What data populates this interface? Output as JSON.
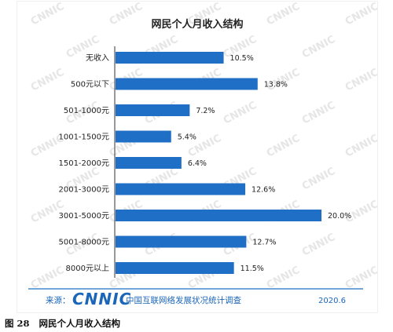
{
  "chart_data": {
    "type": "bar",
    "orientation": "horizontal",
    "title": "网民个人月收入结构",
    "categories": [
      "无收入",
      "500元以下",
      "501-1000元",
      "1001-1500元",
      "1501-2000元",
      "2001-3000元",
      "3001-5000元",
      "5001-8000元",
      "8000元以上"
    ],
    "values": [
      10.5,
      13.8,
      7.2,
      5.4,
      6.4,
      12.6,
      20.0,
      12.7,
      11.5
    ],
    "value_labels": [
      "10.5%",
      "13.8%",
      "7.2%",
      "5.4%",
      "6.4%",
      "12.6%",
      "20.0%",
      "12.7%",
      "11.5%"
    ],
    "xlim": [
      0,
      20
    ],
    "xlabel": "",
    "ylabel": "",
    "bar_color": "#1f6fc6",
    "grid": false,
    "legend": "none"
  },
  "source": {
    "label": "来源：",
    "logo_text": "CNNIC",
    "org": "中国互联网络发展状况统计调查",
    "date": "2020.6",
    "color": "#1b66b8"
  },
  "watermark": {
    "text": "CNNIC"
  },
  "caption": {
    "number": "图 28",
    "text": "网民个人月收入结构"
  }
}
